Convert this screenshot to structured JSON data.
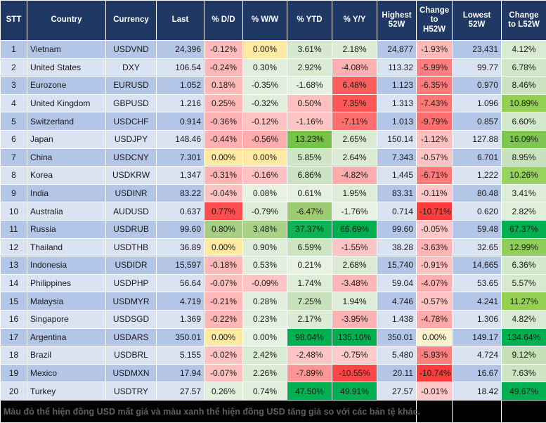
{
  "colors": {
    "header_bg": "#1F3864",
    "header_text": "#ffffff",
    "row_odd_bg": "#B4C6E7",
    "row_even_bg": "#DAE3F2",
    "grid_line": "#ffffff",
    "footer_bg": "#000000",
    "footer_text": "#5f5f5f",
    "zero_yellow": "#FFE9A3",
    "strong_green": "#00B050",
    "strong_red": "#FF3C3C"
  },
  "chart_data": {
    "type": "table",
    "title": "FX rates vs USD - 52 week heatmap table",
    "columns": [
      "STT",
      "Country",
      "Currency",
      "Last",
      "% D/D",
      "% W/W",
      "% YTD",
      "% Y/Y",
      "Highest 52W",
      "Change to H52W",
      "Lowest 52W",
      "Change to L52W"
    ],
    "rows": [
      {
        "stt": "1",
        "country": "Vietnam",
        "currency": "USDVND",
        "last": "24,396",
        "dd": [
          "-0.12%",
          "#FFBBBB"
        ],
        "ww": [
          "0.00%",
          "#FFE9A3"
        ],
        "ytd": [
          "3.61%",
          "#D6E9CE"
        ],
        "yy": [
          "2.18%",
          "#DCECD6"
        ],
        "h52": "24,877",
        "ch52": [
          "-1.93%",
          "#FFB9B9"
        ],
        "l52": "23,431",
        "cl52": [
          "4.12%",
          "#DAEBD3"
        ]
      },
      {
        "stt": "2",
        "country": "United States",
        "currency": "DXY",
        "last": "106.54",
        "dd": [
          "-0.24%",
          "#FFB6B6"
        ],
        "ww": [
          "0.30%",
          "#E0EEDB"
        ],
        "ytd": [
          "2.92%",
          "#D9EBD2"
        ],
        "yy": [
          "-4.08%",
          "#FFB1B1"
        ],
        "h52": "113.32",
        "ch52": [
          "-5.99%",
          "#FF7E7E"
        ],
        "l52": "99.77",
        "cl52": [
          "6.78%",
          "#D2E7C9"
        ]
      },
      {
        "stt": "3",
        "country": "Eurozone",
        "currency": "EURUSD",
        "last": "1.052",
        "dd": [
          "0.18%",
          "#FFB9B9"
        ],
        "ww": [
          "-0.35%",
          "#E0EEDB"
        ],
        "ytd": [
          "-1.68%",
          "#E5F1E1"
        ],
        "yy": [
          "6.48%",
          "#FF5C5C"
        ],
        "h52": "1.123",
        "ch52": [
          "-6.35%",
          "#FF7C7C"
        ],
        "l52": "0.970",
        "cl52": [
          "8.46%",
          "#CBE3C0"
        ]
      },
      {
        "stt": "4",
        "country": "United Kingdom",
        "currency": "GBPUSD",
        "last": "1.216",
        "dd": [
          "0.25%",
          "#FFB7B7"
        ],
        "ww": [
          "-0.32%",
          "#E0EEDB"
        ],
        "ytd": [
          "0.50%",
          "#FFC0C0"
        ],
        "yy": [
          "7.35%",
          "#FF5656"
        ],
        "h52": "1.313",
        "ch52": [
          "-7.43%",
          "#FF7878"
        ],
        "l52": "1.096",
        "cl52": [
          "10.89%",
          "#92D050"
        ]
      },
      {
        "stt": "5",
        "country": "Switzerland",
        "currency": "USDCHF",
        "last": "0.914",
        "dd": [
          "-0.36%",
          "#FFB2B2"
        ],
        "ww": [
          "-0.12%",
          "#FFC2C2"
        ],
        "ytd": [
          "-1.16%",
          "#FFC5C5"
        ],
        "yy": [
          "-7.11%",
          "#FF6E6E"
        ],
        "h52": "1.013",
        "ch52": [
          "-9.79%",
          "#FF6E6E"
        ],
        "l52": "0.857",
        "cl52": [
          "6.60%",
          "#D3E8CB"
        ]
      },
      {
        "stt": "6",
        "country": "Japan",
        "currency": "USDJPY",
        "last": "148.46",
        "dd": [
          "-0.44%",
          "#FFB0B0"
        ],
        "ww": [
          "-0.56%",
          "#FFACAC"
        ],
        "ytd": [
          "13.23%",
          "#77C24A"
        ],
        "yy": [
          "2.65%",
          "#DAEBD3"
        ],
        "h52": "150.14",
        "ch52": [
          "-1.12%",
          "#FFBFBF"
        ],
        "l52": "127.88",
        "cl52": [
          "16.09%",
          "#7EC653"
        ]
      },
      {
        "stt": "7",
        "country": "China",
        "currency": "USDCNY",
        "last": "7.301",
        "dd": [
          "0.00%",
          "#FFE9A3"
        ],
        "ww": [
          "0.00%",
          "#FFE9A3"
        ],
        "ytd": [
          "5.85%",
          "#CFE6C6"
        ],
        "yy": [
          "2.64%",
          "#DAEBD3"
        ],
        "h52": "7.343",
        "ch52": [
          "-0.57%",
          "#FFC3C3"
        ],
        "l52": "6.701",
        "cl52": [
          "8.95%",
          "#C9E2BD"
        ]
      },
      {
        "stt": "8",
        "country": "Korea",
        "currency": "USDKRW",
        "last": "1,347",
        "dd": [
          "-0.31%",
          "#FFB4B4"
        ],
        "ww": [
          "-0.16%",
          "#FFC1C1"
        ],
        "ytd": [
          "6.86%",
          "#CBE3C0"
        ],
        "yy": [
          "-4.82%",
          "#FFACAC"
        ],
        "h52": "1,445",
        "ch52": [
          "-6.71%",
          "#FF7B7B"
        ],
        "l52": "1,222",
        "cl52": [
          "10.26%",
          "#98D35C"
        ]
      },
      {
        "stt": "9",
        "country": "India",
        "currency": "USDINR",
        "last": "83.22",
        "dd": [
          "-0.04%",
          "#FFC2C2"
        ],
        "ww": [
          "0.08%",
          "#E6F2E2"
        ],
        "ytd": [
          "0.61%",
          "#E4F0E0"
        ],
        "yy": [
          "1.95%",
          "#DDEDD7"
        ],
        "h52": "83.31",
        "ch52": [
          "-0.11%",
          "#FFC7C7"
        ],
        "l52": "80.48",
        "cl52": [
          "3.41%",
          "#DEEDD8"
        ]
      },
      {
        "stt": "10",
        "country": "Australia",
        "currency": "AUDUSD",
        "last": "0.637",
        "dd": [
          "0.77%",
          "#FF4D4D"
        ],
        "ww": [
          "-0.79%",
          "#DDEDD7"
        ],
        "ytd": [
          "-6.47%",
          "#9CCB72"
        ],
        "yy": [
          "-1.76%",
          "#E7F2E3"
        ],
        "h52": "0.714",
        "ch52": [
          "-10.71%",
          "#FF3C3C"
        ],
        "l52": "0.620",
        "cl52": [
          "2.82%",
          "#E0EEDB"
        ]
      },
      {
        "stt": "11",
        "country": "Russia",
        "currency": "USDRUB",
        "last": "99.60",
        "dd": [
          "0.80%",
          "#A6CF85"
        ],
        "ww": [
          "3.48%",
          "#A9D188"
        ],
        "ytd": [
          "37.37%",
          "#0DB253"
        ],
        "yy": [
          "66.69%",
          "#00B050"
        ],
        "h52": "99.60",
        "ch52": [
          "-0.05%",
          "#FFC7C7"
        ],
        "l52": "59.48",
        "cl52": [
          "67.37%",
          "#00B050"
        ]
      },
      {
        "stt": "12",
        "country": "Thailand",
        "currency": "USDTHB",
        "last": "36.89",
        "dd": [
          "0.00%",
          "#FFE9A3"
        ],
        "ww": [
          "0.90%",
          "#DFEEDA"
        ],
        "ytd": [
          "6.59%",
          "#CCE4C2"
        ],
        "yy": [
          "-1.55%",
          "#FFC4C4"
        ],
        "h52": "38.28",
        "ch52": [
          "-3.63%",
          "#FFB3B3"
        ],
        "l52": "32.65",
        "cl52": [
          "12.99%",
          "#8FCE59"
        ]
      },
      {
        "stt": "13",
        "country": "Indonesia",
        "currency": "USDIDR",
        "last": "15,597",
        "dd": [
          "-0.18%",
          "#FFB8B8"
        ],
        "ww": [
          "0.53%",
          "#E2EFDE"
        ],
        "ytd": [
          "0.21%",
          "#E7F2E3"
        ],
        "yy": [
          "2.68%",
          "#DAEBD3"
        ],
        "h52": "15,740",
        "ch52": [
          "-0.91%",
          "#FFC1C1"
        ],
        "l52": "14,665",
        "cl52": [
          "6.36%",
          "#D4E8CC"
        ]
      },
      {
        "stt": "14",
        "country": "Philippines",
        "currency": "USDPHP",
        "last": "56.64",
        "dd": [
          "-0.07%",
          "#FFC0C0"
        ],
        "ww": [
          "-0.09%",
          "#FFC5C5"
        ],
        "ytd": [
          "1.74%",
          "#DEEDD8"
        ],
        "yy": [
          "-3.48%",
          "#FFB6B6"
        ],
        "h52": "59.04",
        "ch52": [
          "-4.07%",
          "#FFAFAF"
        ],
        "l52": "53.65",
        "cl52": [
          "5.57%",
          "#D7EACF"
        ]
      },
      {
        "stt": "15",
        "country": "Malaysia",
        "currency": "USDMYR",
        "last": "4.719",
        "dd": [
          "-0.21%",
          "#FFB7B7"
        ],
        "ww": [
          "0.28%",
          "#E2EFDD"
        ],
        "ytd": [
          "7.25%",
          "#C7E1BA"
        ],
        "yy": [
          "1.94%",
          "#DDEDD7"
        ],
        "h52": "4.746",
        "ch52": [
          "-0.57%",
          "#FFC3C3"
        ],
        "l52": "4.241",
        "cl52": [
          "11.27%",
          "#94D153"
        ]
      },
      {
        "stt": "16",
        "country": "Singapore",
        "currency": "USDSGD",
        "last": "1.369",
        "dd": [
          "-0.22%",
          "#FFB6B6"
        ],
        "ww": [
          "0.23%",
          "#E3F0DF"
        ],
        "ytd": [
          "2.17%",
          "#DBECD5"
        ],
        "yy": [
          "-3.95%",
          "#FFB2B2"
        ],
        "h52": "1.438",
        "ch52": [
          "-4.78%",
          "#FFAAAA"
        ],
        "l52": "1.306",
        "cl52": [
          "4.82%",
          "#DAEBD3"
        ]
      },
      {
        "stt": "17",
        "country": "Argentina",
        "currency": "USDARS",
        "last": "350.01",
        "dd": [
          "0.00%",
          "#FFE9A3"
        ],
        "ww": [
          "0.00%",
          "#E6F2E2"
        ],
        "ytd": [
          "98.04%",
          "#00B050"
        ],
        "yy": [
          "135.10%",
          "#00B050"
        ],
        "h52": "350.01",
        "ch52": [
          "0.00%",
          "#FEF2CC"
        ],
        "l52": "149.17",
        "cl52": [
          "134.64%",
          "#00B050"
        ]
      },
      {
        "stt": "18",
        "country": "Brazil",
        "currency": "USDBRL",
        "last": "5.155",
        "dd": [
          "-0.02%",
          "#FFC3C3"
        ],
        "ww": [
          "2.42%",
          "#DAEBD4"
        ],
        "ytd": [
          "-2.48%",
          "#FFC5C5"
        ],
        "yy": [
          "-0.75%",
          "#FFCACA"
        ],
        "h52": "5.480",
        "ch52": [
          "-5.93%",
          "#FF8080"
        ],
        "l52": "4.724",
        "cl52": [
          "9.12%",
          "#C5E0B7"
        ]
      },
      {
        "stt": "19",
        "country": "Mexico",
        "currency": "USDMXN",
        "last": "17.94",
        "dd": [
          "-0.07%",
          "#FFC0C0"
        ],
        "ww": [
          "2.26%",
          "#DBECD5"
        ],
        "ytd": [
          "-7.89%",
          "#FF9494"
        ],
        "yy": [
          "-10.55%",
          "#FF4646"
        ],
        "h52": "20.11",
        "ch52": [
          "-10.74%",
          "#FF3C3C"
        ],
        "l52": "16.67",
        "cl52": [
          "7.63%",
          "#CEE5C4"
        ]
      },
      {
        "stt": "20",
        "country": "Turkey",
        "currency": "USDTRY",
        "last": "27.57",
        "dd": [
          "0.26%",
          "#E2EFDD"
        ],
        "ww": [
          "0.74%",
          "#E0EEDB"
        ],
        "ytd": [
          "47.50%",
          "#00B050"
        ],
        "yy": [
          "49.91%",
          "#00B050"
        ],
        "h52": "27.57",
        "ch52": [
          "-0.01%",
          "#FFC7C7"
        ],
        "l52": "18.42",
        "cl52": [
          "49.67%",
          "#00B050"
        ]
      }
    ]
  },
  "footer": {
    "note": "Màu đỏ thể hiện đồng USD mất giá và màu xanh thể hiện đồng USD tăng giá so với các bản tệ khác."
  }
}
